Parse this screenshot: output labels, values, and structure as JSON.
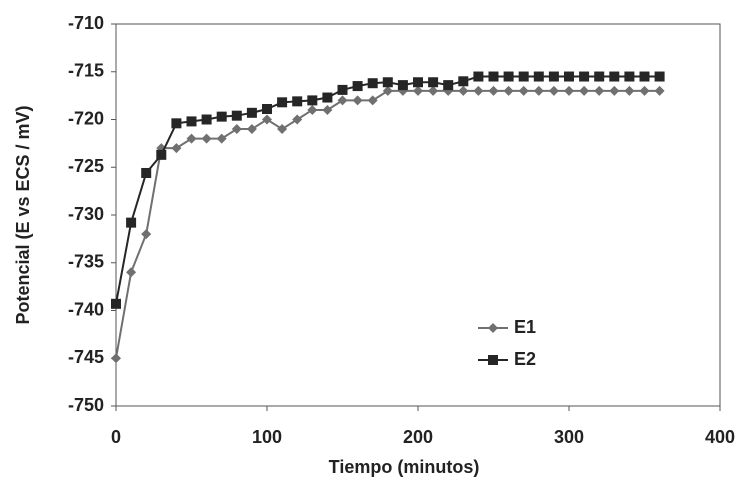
{
  "chart_data": {
    "type": "line",
    "x_label": "Tiempo (minutos)",
    "y_label": "Potencial (E vs ECS / mV)",
    "x": [
      0,
      10,
      20,
      30,
      40,
      50,
      60,
      70,
      80,
      90,
      100,
      110,
      120,
      130,
      140,
      150,
      160,
      170,
      180,
      190,
      200,
      210,
      220,
      230,
      240,
      250,
      260,
      270,
      280,
      290,
      300,
      310,
      320,
      330,
      340,
      350,
      360
    ],
    "series": [
      {
        "name": "E1",
        "color": "#707070",
        "marker": "diamond",
        "values": [
          -745,
          -736,
          -732,
          -723,
          -723,
          -722,
          -722,
          -722,
          -721,
          -721,
          -720,
          -721,
          -720,
          -719,
          -719,
          -718,
          -718,
          -718,
          -717,
          -717,
          -717,
          -717,
          -717,
          -717,
          -717,
          -717,
          -717,
          -717,
          -717,
          -717,
          -717,
          -717,
          -717,
          -717,
          -717,
          -717,
          -717
        ]
      },
      {
        "name": "E2",
        "color": "#262626",
        "marker": "square",
        "values": [
          -739.3,
          -730.8,
          -725.6,
          -723.7,
          -720.4,
          -720.2,
          -720,
          -719.7,
          -719.6,
          -719.3,
          -718.9,
          -718.2,
          -718.1,
          -718,
          -717.7,
          -716.9,
          -716.5,
          -716.2,
          -716.1,
          -716.4,
          -716.1,
          -716.1,
          -716.4,
          -716,
          -715.5,
          -715.5,
          -715.5,
          -715.5,
          -715.5,
          -715.5,
          -715.5,
          -715.5,
          -715.5,
          -715.5,
          -715.5,
          -715.5,
          -715.5
        ]
      }
    ],
    "xlim": [
      0,
      400
    ],
    "xticks": [
      0,
      100,
      200,
      300,
      400
    ],
    "ylim": [
      -750,
      -710
    ],
    "yticks": [
      -750,
      -745,
      -740,
      -735,
      -730,
      -725,
      -720,
      -715,
      -710
    ],
    "legend": "lower-right"
  }
}
